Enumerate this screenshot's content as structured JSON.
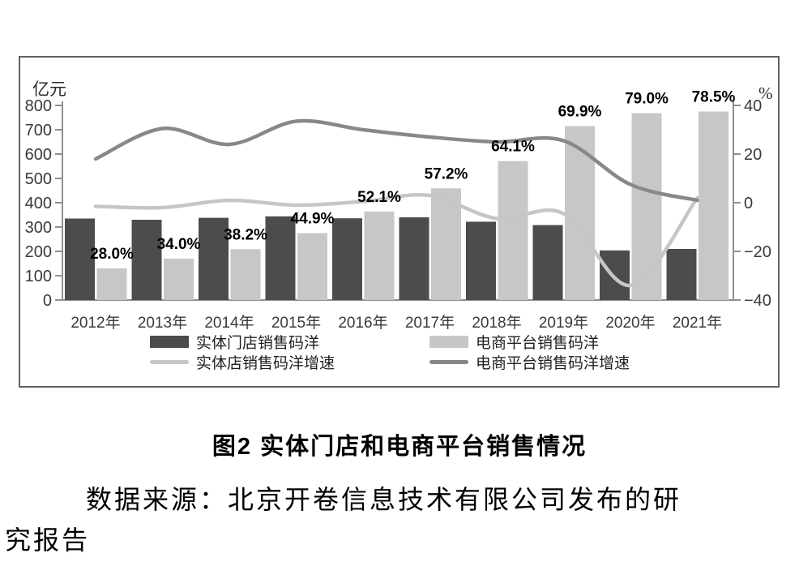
{
  "caption": {
    "title": "图2 实体门店和电商平台销售情况",
    "source": "数据来源：北京开卷信息技术有限公司发布的研究报告"
  },
  "chart_data": {
    "type": "bar+line",
    "categories": [
      "2012年",
      "2013年",
      "2014年",
      "2015年",
      "2016年",
      "2017年",
      "2018年",
      "2019年",
      "2020年",
      "2021年"
    ],
    "series": [
      {
        "name": "实体门店销售码洋",
        "type": "bar",
        "axis": "left",
        "color": "#4c4c4c",
        "values": [
          335,
          330,
          338,
          344,
          336,
          340,
          322,
          308,
          204,
          210
        ]
      },
      {
        "name": "电商平台销售码洋",
        "type": "bar",
        "axis": "left",
        "color": "#c7c7c7",
        "values": [
          130,
          170,
          209,
          275,
          364,
          459,
          571,
          715,
          768,
          775
        ],
        "labels": [
          "28.0%",
          "34.0%",
          "38.2%",
          "44.9%",
          "52.1%",
          "57.2%",
          "64.1%",
          "69.9%",
          "79.0%",
          "78.5%"
        ]
      },
      {
        "name": "实体店销售码洋增速",
        "type": "line",
        "axis": "right",
        "color": "#c6c6c6",
        "values": [
          -1.5,
          -2,
          1,
          -1,
          0.5,
          3,
          -6.5,
          -4.5,
          -34,
          2
        ]
      },
      {
        "name": "电商平台销售码洋增速",
        "type": "line",
        "axis": "right",
        "color": "#888888",
        "values": [
          18,
          30.5,
          24,
          33.5,
          30,
          27,
          25,
          25.5,
          7.5,
          1
        ]
      }
    ],
    "left_axis": {
      "title": "亿元",
      "min": 0,
      "max": 800,
      "ticks": [
        0,
        100,
        200,
        300,
        400,
        500,
        600,
        700,
        800
      ]
    },
    "right_axis": {
      "title": "%",
      "min": -40,
      "max": 40,
      "ticks": [
        40,
        20,
        0,
        -20,
        -40
      ]
    },
    "legend_position": "bottom-inside",
    "grid": false
  },
  "style": {
    "axis_color": "#8f8f8f"
  }
}
